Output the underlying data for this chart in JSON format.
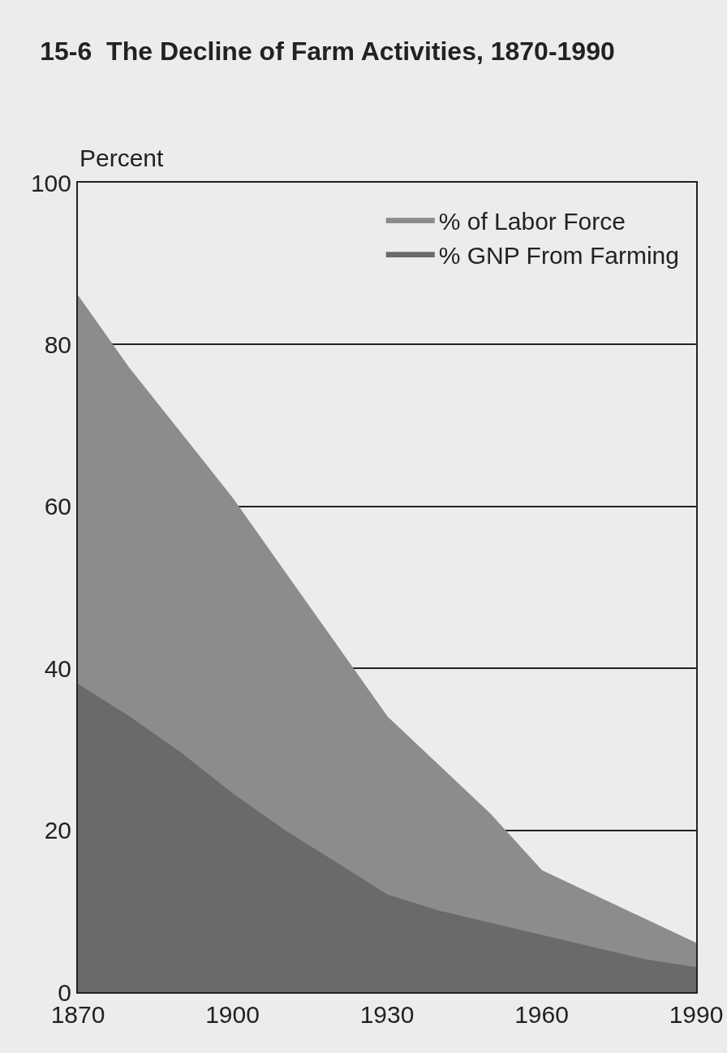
{
  "chart_data": {
    "type": "area",
    "title": "15-6  The Decline of Farm Activities, 1870-1990",
    "ylabel": "Percent",
    "x": [
      1870,
      1880,
      1890,
      1900,
      1910,
      1920,
      1930,
      1940,
      1950,
      1960,
      1970,
      1980,
      1990
    ],
    "series": [
      {
        "name": "% of Labor Force",
        "color": "#8c8c8c",
        "values": [
          86,
          77,
          69,
          61,
          52,
          43,
          34,
          28,
          22,
          15,
          12,
          9,
          6
        ]
      },
      {
        "name": "% GNP From Farming",
        "color": "#6a6a6a",
        "values": [
          38,
          34,
          29.5,
          24.5,
          20,
          16,
          12,
          10,
          8.5,
          7,
          5.5,
          4,
          3
        ]
      }
    ],
    "xlim": [
      1870,
      1990
    ],
    "xticks": [
      1870,
      1900,
      1930,
      1960,
      1990
    ],
    "ylim": [
      0,
      100
    ],
    "yticks": [
      0,
      20,
      40,
      60,
      80,
      100
    ],
    "grid": "y",
    "legend": "top right"
  }
}
